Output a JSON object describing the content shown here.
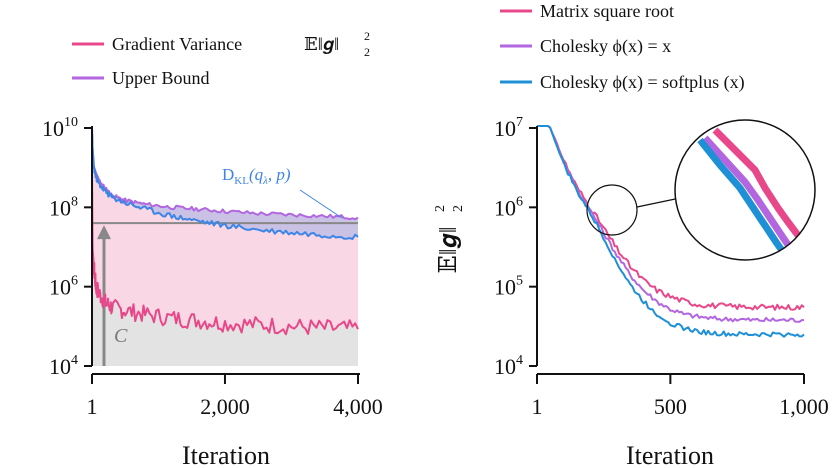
{
  "chart_data": [
    {
      "type": "line",
      "xlabel": "Iteration",
      "ylabel": "",
      "xlim": [
        1,
        4000
      ],
      "ylim": [
        10000,
        10000000000
      ],
      "yscale": "log",
      "xticks": [
        1,
        2000,
        4000
      ],
      "xtick_labels": [
        "1",
        "2,000",
        "4,000"
      ],
      "ytick_labels": [
        {
          "base": "10",
          "exp": "4"
        },
        {
          "base": "10",
          "exp": "6"
        },
        {
          "base": "10",
          "exp": "8"
        },
        {
          "base": "10",
          "exp": "10"
        }
      ],
      "ytick_values": [
        10000,
        1000000,
        100000000,
        10000000000
      ],
      "legend_position": "top",
      "series": [
        {
          "name": "Gradient Variance",
          "color": "#e8488a",
          "x": [
            1,
            10,
            30,
            60,
            100,
            200,
            300,
            500,
            800,
            1200,
            1600,
            2000,
            2500,
            3000,
            3500,
            4000
          ],
          "y": [
            1000000000,
            10000000,
            3000000,
            1000000,
            700000,
            400000,
            300000,
            250000,
            200000,
            160000,
            140000,
            120000,
            110000,
            100000,
            90000,
            85000
          ]
        },
        {
          "name": "Upper Bound",
          "color": "#b266e0",
          "x": [
            1,
            10,
            30,
            60,
            100,
            200,
            300,
            500,
            800,
            1200,
            1600,
            2000,
            2500,
            3000,
            3500,
            4000
          ],
          "y": [
            10000000000,
            3000000000,
            1000000000,
            700000000,
            500000000,
            300000000,
            200000000,
            150000000,
            120000000,
            100000000,
            90000000,
            80000000,
            70000000,
            65000000,
            60000000,
            55000000
          ]
        },
        {
          "name": "DKL",
          "color": "#3d85e6",
          "x": [
            1,
            10,
            30,
            60,
            100,
            200,
            300,
            500,
            800,
            1200,
            1600,
            2000,
            2500,
            3000,
            3500,
            4000
          ],
          "y": [
            10000000000,
            3000000000,
            1000000000,
            600000000,
            400000000,
            250000000,
            180000000,
            130000000,
            90000000,
            60000000,
            45000000,
            35000000,
            27000000,
            23000000,
            20000000,
            18000000
          ]
        }
      ],
      "constant_C": 40000000,
      "legend": {
        "variance_label": "Gradient Variance",
        "bound_label": "Upper Bound",
        "expectation_symbol": "𝔼‖𝒈‖",
        "expectation_sup": "2",
        "expectation_sub": "2"
      },
      "annotations": {
        "dkl_text": "D",
        "dkl_sub": "KL",
        "dkl_args": "(q",
        "dkl_lambda": "λ",
        "dkl_end": ", p)",
        "c_label": "C"
      }
    },
    {
      "type": "line",
      "xlabel": "Iteration",
      "ylabel": "𝔼‖𝒈‖",
      "ylabel_sup": "2",
      "ylabel_sub": "2",
      "xlim": [
        1,
        1000
      ],
      "ylim": [
        10000,
        10000000
      ],
      "yscale": "log",
      "xticks": [
        1,
        500,
        1000
      ],
      "xtick_labels": [
        "1",
        "500",
        "1,000"
      ],
      "ytick_labels": [
        {
          "base": "10",
          "exp": "4"
        },
        {
          "base": "10",
          "exp": "5"
        },
        {
          "base": "10",
          "exp": "6"
        },
        {
          "base": "10",
          "exp": "7"
        }
      ],
      "ytick_values": [
        10000,
        100000,
        1000000,
        10000000
      ],
      "legend_position": "top",
      "series": [
        {
          "name": "Matrix square root",
          "color": "#e8488a",
          "x": [
            1,
            50,
            100,
            150,
            200,
            250,
            300,
            350,
            400,
            450,
            500,
            550,
            600,
            650,
            700,
            750,
            800,
            850,
            900,
            950,
            1000
          ],
          "y": [
            100000000,
            10000000,
            4000000,
            1800000,
            1000000,
            550000,
            300000,
            180000,
            120000,
            90000,
            75000,
            66000,
            60000,
            58000,
            57000,
            56000,
            56000,
            55000,
            55000,
            55000,
            55000
          ]
        },
        {
          "name": "Cholesky φ(x) = x",
          "color": "#b266e0",
          "x": [
            1,
            50,
            100,
            150,
            200,
            250,
            300,
            350,
            400,
            450,
            500,
            550,
            600,
            650,
            700,
            750,
            800,
            850,
            900,
            950,
            1000
          ],
          "y": [
            100000000,
            10000000,
            3800000,
            1700000,
            920000,
            480000,
            250000,
            140000,
            90000,
            65000,
            52000,
            45000,
            42000,
            40000,
            39000,
            39000,
            38000,
            38000,
            38000,
            38000,
            38000
          ]
        },
        {
          "name": "Cholesky φ(x) = softplus (x)",
          "color": "#1e90d6",
          "x": [
            1,
            50,
            100,
            150,
            200,
            250,
            300,
            350,
            400,
            450,
            500,
            550,
            600,
            650,
            700,
            750,
            800,
            850,
            900,
            950,
            1000
          ],
          "y": [
            100000000,
            10000000,
            3600000,
            1600000,
            850000,
            420000,
            200000,
            105000,
            65000,
            45000,
            35000,
            30000,
            27500,
            26000,
            25500,
            25000,
            25000,
            25000,
            25000,
            25000,
            25000
          ]
        }
      ],
      "legend": {
        "series_1": "Matrix square root",
        "series_2": "Cholesky ϕ(x) = x",
        "series_3": "Cholesky ϕ(x) = softplus (x)"
      }
    }
  ]
}
